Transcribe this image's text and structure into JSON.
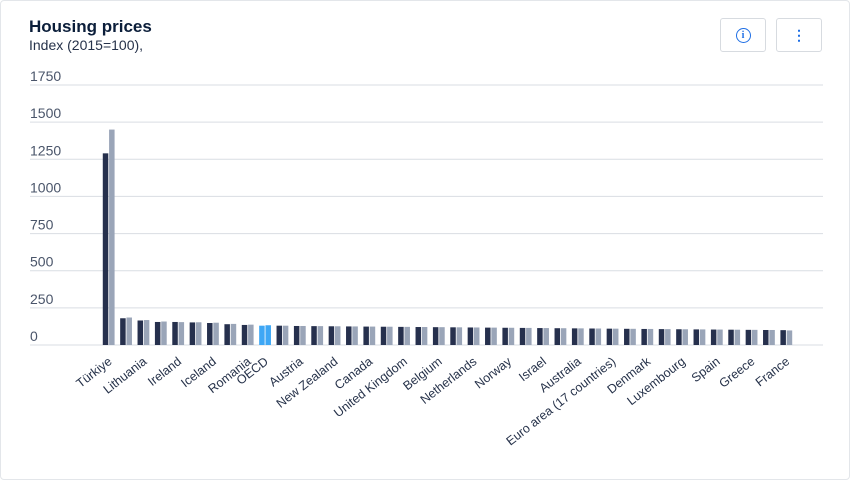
{
  "header": {
    "title": "Housing prices",
    "subtitle": "Index (2015=100),"
  },
  "toolbar": {
    "info_icon": "info-icon",
    "menu_icon": "more-vertical-icon"
  },
  "colors": {
    "dark": "#26304d",
    "light": "#9aa5b8",
    "highlight": "#3ea7f5",
    "grid": "#d9dde3"
  },
  "chart_data": {
    "type": "bar",
    "title": "Housing prices",
    "subtitle": "Index (2015=100),",
    "ylim": [
      0,
      1750
    ],
    "yticks": [
      0,
      250,
      500,
      750,
      1000,
      1250,
      1500,
      1750
    ],
    "grid": true,
    "highlight_index": 9,
    "categories": [
      "Türkiye",
      "",
      "Lithuania",
      "",
      "Ireland",
      "",
      "Iceland",
      "",
      "Romania",
      "OECD",
      "",
      "Austria",
      "",
      "New Zealand",
      "",
      "Canada",
      "",
      "United Kingdom",
      "",
      "Belgium",
      "",
      "Netherlands",
      "",
      "Norway",
      "",
      "Israel",
      "",
      "Australia",
      "",
      "Euro area (17 countries)",
      "",
      "Denmark",
      "",
      "Luxembourg",
      "",
      "Spain",
      "",
      "Greece",
      "",
      "France"
    ],
    "series": [
      {
        "values": [
          1290,
          180,
          165,
          155,
          155,
          152,
          148,
          140,
          135,
          130,
          130,
          128,
          127,
          126,
          125,
          124,
          123,
          122,
          121,
          120,
          119,
          118,
          117,
          116,
          115,
          114,
          113,
          112,
          111,
          110,
          109,
          108,
          107,
          106,
          105,
          104,
          103,
          102,
          101,
          100
        ]
      },
      {
        "values": [
          1450,
          185,
          168,
          158,
          154,
          153,
          150,
          142,
          137,
          133,
          130,
          128,
          127,
          126,
          125,
          124,
          123,
          122,
          121,
          120,
          119,
          118,
          117,
          116,
          115,
          114,
          113,
          112,
          111,
          110,
          109,
          108,
          107,
          106,
          105,
          104,
          103,
          102,
          101,
          98
        ]
      }
    ]
  }
}
